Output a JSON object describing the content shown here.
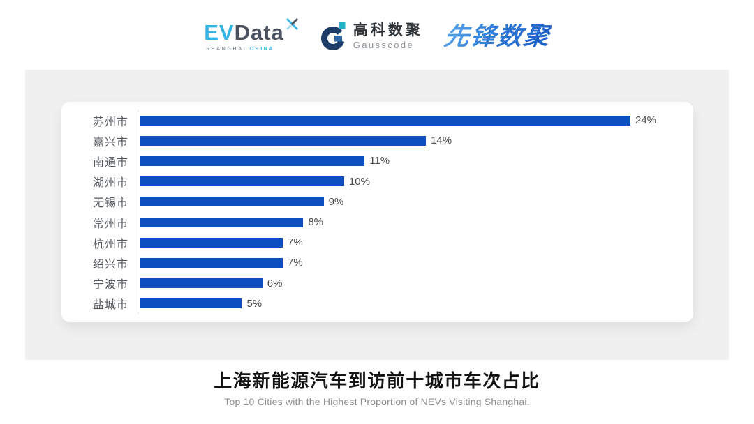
{
  "header": {
    "evdata": {
      "ev": "EV",
      "data": "Data",
      "sub_left": "SHANGHAI",
      "sub_right": "CHINA",
      "accent_color": "#35b3e4",
      "dark_color": "#49525e"
    },
    "gausscode": {
      "cn": "高科数聚",
      "en": "Gausscode",
      "navy_color": "#1d3d68",
      "teal_color": "#27b2c6"
    },
    "pioneer": {
      "text": "先锋数聚",
      "blue_color": "#2e7ad4"
    }
  },
  "chart_data": {
    "type": "bar",
    "orientation": "horizontal",
    "title": "上海新能源汽车到访前十城市车次占比",
    "subtitle": "Top 10 Cities with the Highest Proportion of  NEVs Visiting Shanghai.",
    "categories": [
      "苏州市",
      "嘉兴市",
      "南通市",
      "湖州市",
      "无锡市",
      "常州市",
      "杭州市",
      "绍兴市",
      "宁波市",
      "盐城市"
    ],
    "values": [
      24,
      14,
      11,
      10,
      9,
      8,
      7,
      7,
      6,
      5
    ],
    "value_suffix": "%",
    "value_labels": "outside-end",
    "xlim": [
      0,
      24
    ],
    "grid": false,
    "legend": false,
    "bar_color": "#0d4ec0",
    "axis_line_color": "#dcdcdc"
  }
}
